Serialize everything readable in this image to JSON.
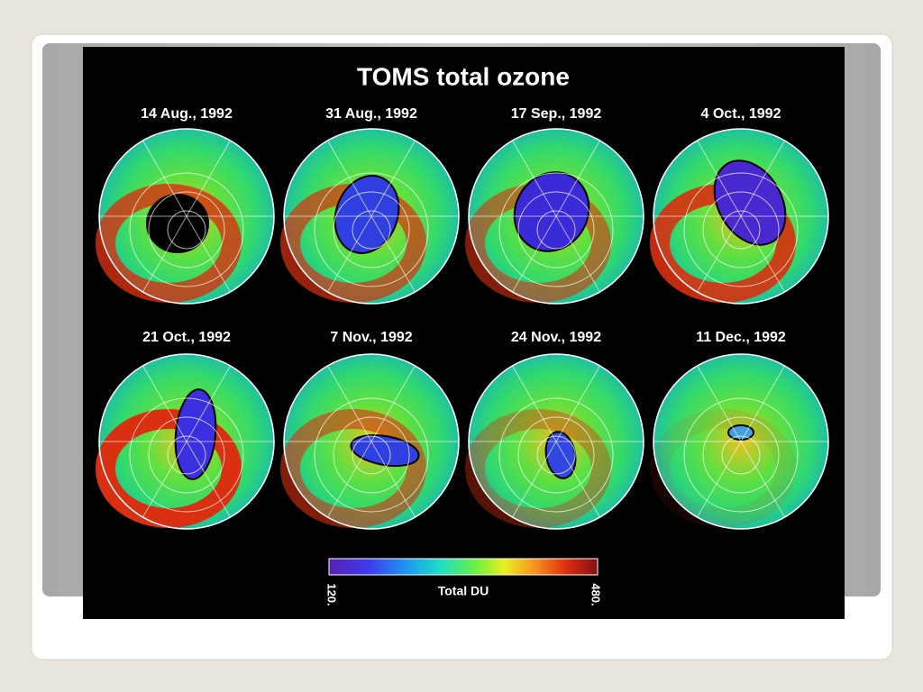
{
  "title": "TOMS total ozone",
  "panels": [
    {
      "label": "14 Aug., 1992"
    },
    {
      "label": "31 Aug., 1992"
    },
    {
      "label": "17 Sep., 1992"
    },
    {
      "label": "4 Oct., 1992"
    },
    {
      "label": "21 Oct., 1992"
    },
    {
      "label": "7 Nov., 1992"
    },
    {
      "label": "24 Nov., 1992"
    },
    {
      "label": "11 Dec., 1992"
    }
  ],
  "colorbar": {
    "label": "Total DU",
    "min_label": "120.",
    "max_label": "480."
  }
}
